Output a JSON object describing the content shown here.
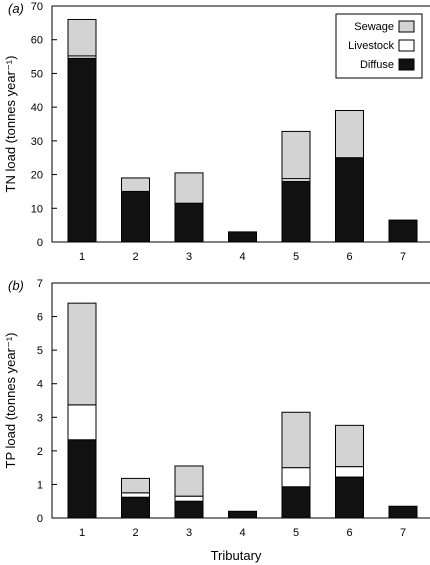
{
  "colors": {
    "sewage": "#d3d3d3",
    "livestock": "#ffffff",
    "diffuse": "#111111",
    "stroke": "#000000"
  },
  "chart_data": [
    {
      "type": "bar",
      "stacked": true,
      "panel_label": "(a)",
      "title": "",
      "xlabel": "",
      "ylabel": "TN load (tonnes year⁻¹)",
      "ylim": [
        0,
        70
      ],
      "yticks": [
        0,
        10,
        20,
        30,
        40,
        50,
        60,
        70
      ],
      "categories": [
        "1",
        "2",
        "3",
        "4",
        "5",
        "6",
        "7"
      ],
      "series": [
        {
          "name": "Diffuse",
          "color_key": "diffuse",
          "values": [
            54.5,
            15.0,
            11.5,
            3.0,
            18.0,
            25.0,
            6.5
          ]
        },
        {
          "name": "Livestock",
          "color_key": "livestock",
          "values": [
            0.7,
            0.0,
            0.0,
            0.0,
            0.8,
            0.0,
            0.0
          ]
        },
        {
          "name": "Sewage",
          "color_key": "sewage",
          "values": [
            10.8,
            4.0,
            9.0,
            0.0,
            14.0,
            14.0,
            0.0
          ]
        }
      ],
      "legend": {
        "position": "top-right",
        "order": [
          "Sewage",
          "Livestock",
          "Diffuse"
        ]
      }
    },
    {
      "type": "bar",
      "stacked": true,
      "panel_label": "(b)",
      "title": "",
      "xlabel": "Tributary",
      "ylabel": "TP load (tonnes year⁻¹)",
      "ylim": [
        0,
        7
      ],
      "yticks": [
        0,
        1,
        2,
        3,
        4,
        5,
        6,
        7
      ],
      "categories": [
        "1",
        "2",
        "3",
        "4",
        "5",
        "6",
        "7"
      ],
      "series": [
        {
          "name": "Diffuse",
          "color_key": "diffuse",
          "values": [
            2.33,
            0.62,
            0.5,
            0.2,
            0.93,
            1.22,
            0.35
          ]
        },
        {
          "name": "Livestock",
          "color_key": "livestock",
          "values": [
            1.04,
            0.13,
            0.15,
            0.0,
            0.57,
            0.31,
            0.0
          ]
        },
        {
          "name": "Sewage",
          "color_key": "sewage",
          "values": [
            3.03,
            0.43,
            0.9,
            0.0,
            1.65,
            1.23,
            0.0
          ]
        }
      ]
    }
  ]
}
